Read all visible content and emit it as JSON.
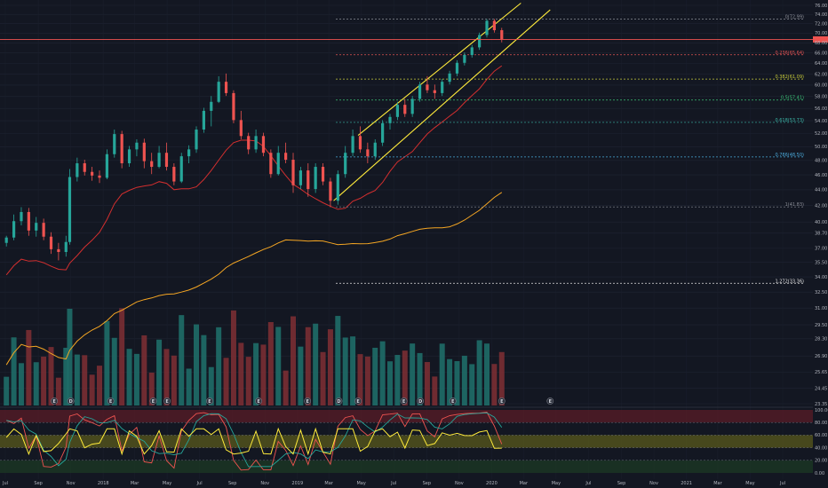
{
  "chart_data": {
    "type": "candlestick",
    "price_axis": {
      "ticks": [
        "76.00",
        "74.00",
        "72.00",
        "70.00",
        "68.00",
        "66.00",
        "64.00",
        "62.00",
        "60.00",
        "58.00",
        "56.00",
        "54.00",
        "52.00",
        "50.00",
        "48.00",
        "46.00",
        "44.00",
        "42.00",
        "40.00",
        "38.70",
        "37.00",
        "35.50",
        "34.00",
        "32.50",
        "31.00",
        "29.50",
        "28.30",
        "26.90",
        "25.65",
        "24.45",
        "23.35"
      ],
      "ylim": [
        23.35,
        76.0
      ],
      "log_scale": true
    },
    "time_axis": {
      "ticks": [
        "Jul",
        "Sep",
        "Nov",
        "2018",
        "Mar",
        "May",
        "Jul",
        "Sep",
        "Nov",
        "2019",
        "Mar",
        "May",
        "Jul",
        "Sep",
        "Nov",
        "2020",
        "Mar",
        "May",
        "Jul",
        "Sep",
        "Nov",
        "2021",
        "Mar",
        "May",
        "Jul"
      ]
    },
    "oscillator_axis": {
      "ticks": [
        "100.00",
        "80.00",
        "60.00",
        "40.00",
        "20.00",
        "0.00"
      ],
      "ylim": [
        0,
        100
      ],
      "bands": [
        {
          "from": 80,
          "to": 100,
          "color": "#5a1c27"
        },
        {
          "from": 40,
          "to": 60,
          "color": "#5a5a1c"
        },
        {
          "from": 0,
          "to": 20,
          "color": "#1c3a24"
        }
      ]
    },
    "fib_levels": [
      {
        "label": "0(72.99)",
        "value": 72.99,
        "color": "#8a8d96"
      },
      {
        "label": "0.236(65.64)",
        "value": 65.64,
        "color": "#e05252"
      },
      {
        "label": "0.382(61.09)",
        "value": 61.09,
        "color": "#c5c93a"
      },
      {
        "label": "0.5(57.41)",
        "value": 57.41,
        "color": "#3bc276"
      },
      {
        "label": "0.618(53.73)",
        "value": 53.73,
        "color": "#3bb6a6"
      },
      {
        "label": "0.786(48.50)",
        "value": 48.5,
        "color": "#4aa8d8"
      },
      {
        "label": "1(41.83)",
        "value": 41.83,
        "color": "#8a8d96"
      },
      {
        "label": "1.272(33.36)",
        "value": 33.36,
        "color": "#e0e0e0"
      }
    ],
    "current_price": 68.7,
    "channel": {
      "upper": [
        {
          "date": "2019-04-25",
          "price": 51.7
        },
        {
          "date": "2020-02-25",
          "price": 76.5
        }
      ],
      "lower": [
        {
          "date": "2019-03-10",
          "price": 42.6
        },
        {
          "date": "2020-04-20",
          "price": 75.0
        }
      ]
    },
    "candles": [
      {
        "date": "2017-07-03",
        "o": 37.6,
        "h": 38.4,
        "l": 37.2,
        "c": 38.2
      },
      {
        "date": "2017-07-17",
        "o": 38.2,
        "h": 40.9,
        "l": 37.9,
        "c": 40.1
      },
      {
        "date": "2017-07-31",
        "o": 40.1,
        "h": 41.8,
        "l": 39.6,
        "c": 41.2
      },
      {
        "date": "2017-08-14",
        "o": 41.2,
        "h": 41.7,
        "l": 38.4,
        "c": 39.0
      },
      {
        "date": "2017-08-28",
        "o": 39.0,
        "h": 40.6,
        "l": 38.3,
        "c": 39.9
      },
      {
        "date": "2017-09-11",
        "o": 39.9,
        "h": 40.4,
        "l": 37.9,
        "c": 38.3
      },
      {
        "date": "2017-09-25",
        "o": 38.3,
        "h": 38.8,
        "l": 36.4,
        "c": 36.9
      },
      {
        "date": "2017-10-09",
        "o": 36.9,
        "h": 37.6,
        "l": 35.7,
        "c": 36.6
      },
      {
        "date": "2017-10-23",
        "o": 36.6,
        "h": 38.4,
        "l": 36.1,
        "c": 37.7
      },
      {
        "date": "2017-10-30",
        "o": 37.7,
        "h": 46.8,
        "l": 37.4,
        "c": 45.7
      },
      {
        "date": "2017-11-13",
        "o": 45.7,
        "h": 48.4,
        "l": 45.1,
        "c": 47.6
      },
      {
        "date": "2017-11-27",
        "o": 47.6,
        "h": 48.1,
        "l": 45.9,
        "c": 46.4
      },
      {
        "date": "2017-12-11",
        "o": 46.4,
        "h": 47.1,
        "l": 45.2,
        "c": 45.9
      },
      {
        "date": "2017-12-25",
        "o": 45.9,
        "h": 46.6,
        "l": 44.9,
        "c": 45.6
      },
      {
        "date": "2018-01-08",
        "o": 45.6,
        "h": 49.6,
        "l": 45.4,
        "c": 48.9
      },
      {
        "date": "2018-01-22",
        "o": 48.9,
        "h": 52.6,
        "l": 48.4,
        "c": 51.9
      },
      {
        "date": "2018-02-05",
        "o": 51.9,
        "h": 52.4,
        "l": 46.9,
        "c": 47.6
      },
      {
        "date": "2018-02-19",
        "o": 47.6,
        "h": 50.1,
        "l": 47.1,
        "c": 49.6
      },
      {
        "date": "2018-03-05",
        "o": 49.6,
        "h": 51.1,
        "l": 48.6,
        "c": 50.6
      },
      {
        "date": "2018-03-19",
        "o": 50.6,
        "h": 51.2,
        "l": 46.9,
        "c": 47.9
      },
      {
        "date": "2018-04-02",
        "o": 47.9,
        "h": 49.1,
        "l": 46.1,
        "c": 47.1
      },
      {
        "date": "2018-04-16",
        "o": 47.1,
        "h": 50.1,
        "l": 46.9,
        "c": 49.1
      },
      {
        "date": "2018-04-30",
        "o": 49.1,
        "h": 50.6,
        "l": 46.6,
        "c": 47.1
      },
      {
        "date": "2018-05-14",
        "o": 47.1,
        "h": 47.6,
        "l": 44.6,
        "c": 45.1
      },
      {
        "date": "2018-05-28",
        "o": 45.1,
        "h": 49.1,
        "l": 44.9,
        "c": 48.6
      },
      {
        "date": "2018-06-11",
        "o": 48.6,
        "h": 50.2,
        "l": 47.6,
        "c": 49.6
      },
      {
        "date": "2018-06-25",
        "o": 49.6,
        "h": 53.1,
        "l": 49.1,
        "c": 52.6
      },
      {
        "date": "2018-07-09",
        "o": 52.6,
        "h": 56.1,
        "l": 52.1,
        "c": 55.6
      },
      {
        "date": "2018-07-23",
        "o": 55.6,
        "h": 58.1,
        "l": 53.1,
        "c": 57.1
      },
      {
        "date": "2018-08-06",
        "o": 57.1,
        "h": 61.6,
        "l": 56.9,
        "c": 60.6
      },
      {
        "date": "2018-08-20",
        "o": 60.6,
        "h": 62.1,
        "l": 58.1,
        "c": 58.6
      },
      {
        "date": "2018-09-03",
        "o": 58.6,
        "h": 59.1,
        "l": 53.6,
        "c": 54.1
      },
      {
        "date": "2018-09-17",
        "o": 54.1,
        "h": 55.6,
        "l": 51.1,
        "c": 51.6
      },
      {
        "date": "2018-10-01",
        "o": 51.6,
        "h": 52.1,
        "l": 48.9,
        "c": 49.6
      },
      {
        "date": "2018-10-15",
        "o": 49.6,
        "h": 52.6,
        "l": 49.1,
        "c": 51.6
      },
      {
        "date": "2018-10-29",
        "o": 51.6,
        "h": 52.1,
        "l": 48.6,
        "c": 49.1
      },
      {
        "date": "2018-11-12",
        "o": 49.1,
        "h": 49.6,
        "l": 45.6,
        "c": 46.1
      },
      {
        "date": "2018-11-26",
        "o": 46.1,
        "h": 50.1,
        "l": 45.9,
        "c": 49.1
      },
      {
        "date": "2018-12-10",
        "o": 49.1,
        "h": 50.6,
        "l": 47.6,
        "c": 48.1
      },
      {
        "date": "2018-12-24",
        "o": 48.1,
        "h": 49.1,
        "l": 43.6,
        "c": 44.6
      },
      {
        "date": "2019-01-07",
        "o": 44.6,
        "h": 47.1,
        "l": 44.1,
        "c": 46.6
      },
      {
        "date": "2019-01-21",
        "o": 46.6,
        "h": 47.6,
        "l": 43.1,
        "c": 44.1
      },
      {
        "date": "2019-02-04",
        "o": 44.1,
        "h": 47.6,
        "l": 43.6,
        "c": 47.1
      },
      {
        "date": "2019-02-18",
        "o": 47.1,
        "h": 47.6,
        "l": 44.6,
        "c": 45.1
      },
      {
        "date": "2019-03-04",
        "o": 45.1,
        "h": 45.6,
        "l": 41.8,
        "c": 42.6
      },
      {
        "date": "2019-03-18",
        "o": 42.6,
        "h": 46.6,
        "l": 42.1,
        "c": 46.1
      },
      {
        "date": "2019-04-01",
        "o": 46.1,
        "h": 50.1,
        "l": 45.6,
        "c": 49.1
      },
      {
        "date": "2019-04-15",
        "o": 49.1,
        "h": 52.6,
        "l": 48.6,
        "c": 51.6
      },
      {
        "date": "2019-04-29",
        "o": 51.6,
        "h": 53.1,
        "l": 49.1,
        "c": 49.6
      },
      {
        "date": "2019-05-13",
        "o": 49.6,
        "h": 50.6,
        "l": 47.6,
        "c": 48.6
      },
      {
        "date": "2019-05-27",
        "o": 48.6,
        "h": 51.1,
        "l": 48.1,
        "c": 50.6
      },
      {
        "date": "2019-06-10",
        "o": 50.6,
        "h": 54.1,
        "l": 50.1,
        "c": 53.6
      },
      {
        "date": "2019-06-24",
        "o": 53.6,
        "h": 55.1,
        "l": 52.6,
        "c": 54.6
      },
      {
        "date": "2019-07-08",
        "o": 54.6,
        "h": 57.1,
        "l": 54.1,
        "c": 56.6
      },
      {
        "date": "2019-07-22",
        "o": 56.6,
        "h": 57.6,
        "l": 54.6,
        "c": 55.1
      },
      {
        "date": "2019-08-05",
        "o": 55.1,
        "h": 58.1,
        "l": 54.6,
        "c": 57.6
      },
      {
        "date": "2019-08-19",
        "o": 57.6,
        "h": 60.6,
        "l": 57.1,
        "c": 60.1
      },
      {
        "date": "2019-09-02",
        "o": 60.1,
        "h": 61.6,
        "l": 58.6,
        "c": 59.1
      },
      {
        "date": "2019-09-16",
        "o": 59.1,
        "h": 60.1,
        "l": 57.6,
        "c": 58.6
      },
      {
        "date": "2019-09-30",
        "o": 58.6,
        "h": 61.1,
        "l": 58.1,
        "c": 60.6
      },
      {
        "date": "2019-10-14",
        "o": 60.6,
        "h": 62.6,
        "l": 60.1,
        "c": 62.1
      },
      {
        "date": "2019-10-28",
        "o": 62.1,
        "h": 64.6,
        "l": 61.6,
        "c": 64.1
      },
      {
        "date": "2019-11-11",
        "o": 64.1,
        "h": 66.1,
        "l": 63.6,
        "c": 65.6
      },
      {
        "date": "2019-11-25",
        "o": 65.6,
        "h": 67.6,
        "l": 65.1,
        "c": 67.1
      },
      {
        "date": "2019-12-09",
        "o": 67.1,
        "h": 70.1,
        "l": 66.6,
        "c": 69.6
      },
      {
        "date": "2019-12-23",
        "o": 69.6,
        "h": 73.0,
        "l": 69.1,
        "c": 72.6
      },
      {
        "date": "2020-01-06",
        "o": 72.6,
        "h": 73.0,
        "l": 70.1,
        "c": 70.6
      },
      {
        "date": "2020-01-20",
        "o": 70.6,
        "h": 71.1,
        "l": 68.1,
        "c": 68.7
      }
    ]
  }
}
